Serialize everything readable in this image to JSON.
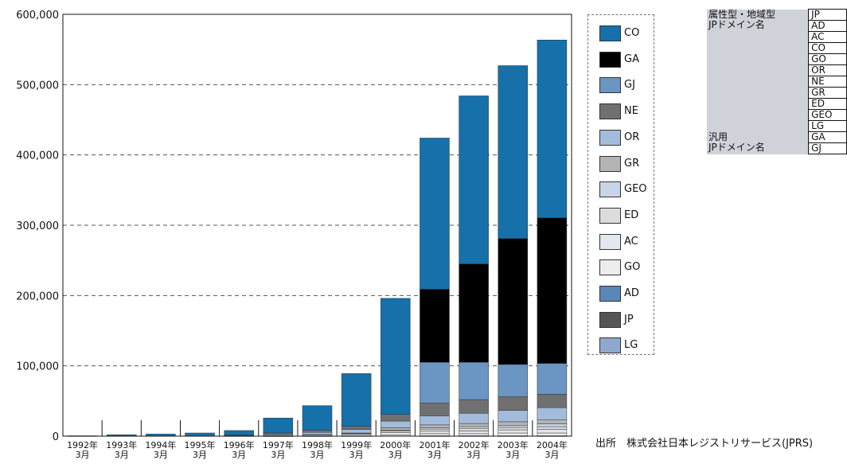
{
  "chart_data": {
    "type": "bar",
    "stacked": true,
    "categories": [
      "1992年\n3月",
      "1993年\n3月",
      "1994年\n3月",
      "1995年\n3月",
      "1996年\n3月",
      "1997年\n3月",
      "1998年\n3月",
      "1999年\n3月",
      "2000年\n3月",
      "2001年\n3月",
      "2002年\n3月",
      "2003年\n3月",
      "2004年\n3月"
    ],
    "ylim": [
      0,
      600000
    ],
    "yticks": [
      0,
      100000,
      200000,
      300000,
      400000,
      500000,
      600000
    ],
    "ytick_labels": [
      "0",
      "100,000",
      "200,000",
      "300,000",
      "400,000",
      "500,000",
      "600,000"
    ],
    "grid": "dashed horizontal",
    "legend_position": "right",
    "series": [
      {
        "name": "LG",
        "color": "#8fa8cf",
        "values": [
          0,
          0,
          0,
          0,
          0,
          0,
          0,
          0,
          0,
          0,
          0,
          0,
          0
        ]
      },
      {
        "name": "JP",
        "color": "#555555",
        "values": [
          0,
          0,
          0,
          0,
          0,
          0,
          0,
          0,
          0,
          0,
          0,
          0,
          0
        ]
      },
      {
        "name": "AD",
        "color": "#5b86b8",
        "values": [
          0,
          0,
          0,
          0,
          0,
          0,
          0,
          0,
          0,
          500,
          500,
          500,
          500
        ]
      },
      {
        "name": "GO",
        "color": "#ededed",
        "values": [
          0,
          0,
          0,
          0,
          0,
          300,
          400,
          500,
          2000,
          3000,
          3000,
          4000,
          4000
        ]
      },
      {
        "name": "AC",
        "color": "#e3e7ef",
        "values": [
          0,
          0,
          0,
          0,
          500,
          1000,
          1500,
          2000,
          3000,
          3500,
          4000,
          4500,
          5000
        ]
      },
      {
        "name": "ED",
        "color": "#dcdcdc",
        "values": [
          0,
          0,
          0,
          0,
          0,
          0,
          500,
          1000,
          2500,
          3000,
          3500,
          3500,
          4000
        ]
      },
      {
        "name": "GEO",
        "color": "#c9d4e8",
        "values": [
          0,
          0,
          0,
          0,
          0,
          0,
          0,
          0,
          1000,
          2000,
          2500,
          3000,
          4000
        ]
      },
      {
        "name": "GR",
        "color": "#b4b4b4",
        "values": [
          0,
          0,
          0,
          0,
          0,
          0,
          0,
          1000,
          3500,
          4000,
          4500,
          5000,
          5500
        ]
      },
      {
        "name": "OR",
        "color": "#a4bcdc",
        "values": [
          0,
          0,
          0,
          0,
          500,
          1500,
          3000,
          5000,
          9500,
          13000,
          14500,
          16000,
          17500
        ]
      },
      {
        "name": "NE",
        "color": "#707070",
        "values": [
          0,
          0,
          0,
          0,
          500,
          2000,
          3000,
          4500,
          9500,
          18000,
          19500,
          19500,
          19000
        ]
      },
      {
        "name": "GJ",
        "color": "#6b95c2",
        "values": [
          0,
          0,
          0,
          0,
          0,
          0,
          0,
          0,
          0,
          58000,
          53000,
          46000,
          44000
        ]
      },
      {
        "name": "GA",
        "color": "#000000",
        "values": [
          0,
          0,
          0,
          0,
          0,
          0,
          0,
          0,
          0,
          104000,
          140000,
          179000,
          207000
        ]
      },
      {
        "name": "CO",
        "color": "#1670aa",
        "values": [
          500,
          2000,
          3000,
          4500,
          6500,
          21000,
          35000,
          75000,
          165000,
          215000,
          239000,
          246000,
          253000
        ]
      }
    ],
    "legend_order": [
      "CO",
      "GA",
      "GJ",
      "NE",
      "OR",
      "GR",
      "GEO",
      "ED",
      "AC",
      "GO",
      "AD",
      "JP",
      "LG"
    ]
  },
  "side_table": {
    "groups": [
      {
        "label_lines": [
          "属性型・地域型",
          "JPドメイン名"
        ],
        "codes": [
          "JP",
          "AD",
          "AC",
          "CO",
          "GO",
          "OR",
          "NE",
          "GR",
          "ED",
          "GEO",
          "LG"
        ]
      },
      {
        "label_lines": [
          "汎用",
          "JPドメイン名"
        ],
        "codes": [
          "GA",
          "GJ"
        ]
      }
    ]
  },
  "source": "出所　株式会社日本レジストリサービス(JPRS)"
}
